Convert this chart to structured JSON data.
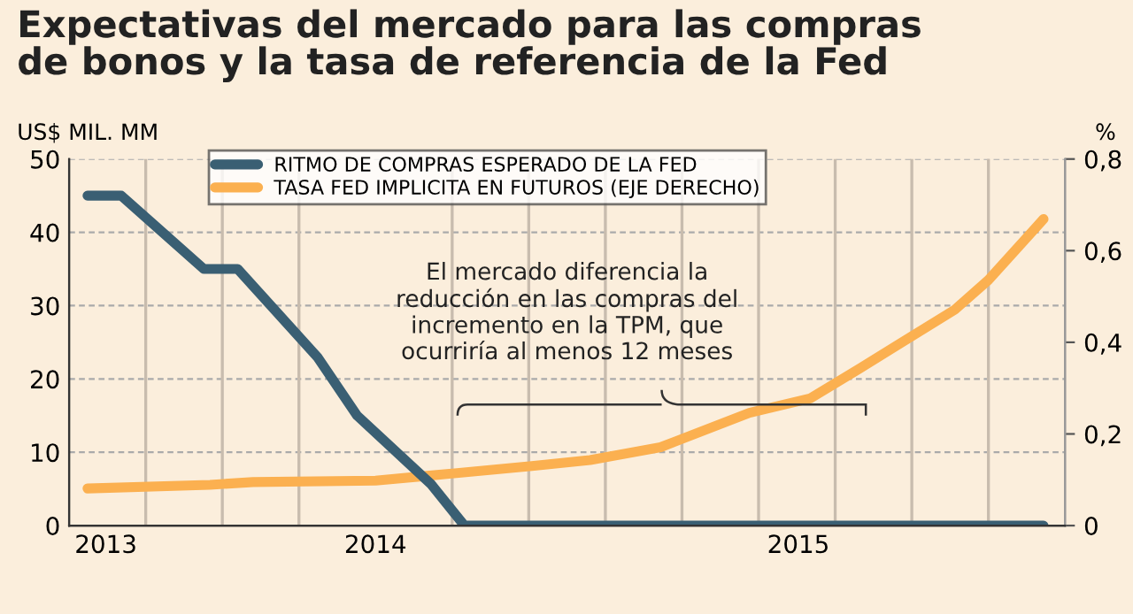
{
  "chart_data": {
    "type": "line",
    "title": "Expectativas del mercado para las compras\nde bonos y la tasa de referencia de la Fed",
    "ylabel": "US$ MIL. MM",
    "y2label": "%",
    "x": [
      2013.06,
      2013.17,
      2013.44,
      2013.55,
      2013.81,
      2013.94,
      2014.18,
      2014.29,
      2016.18
    ],
    "series": [
      {
        "name": "RITMO DE COMPRAS ESPERADO DE LA FED",
        "color": "#3a5f73",
        "values": [
          45,
          45,
          35,
          35,
          23,
          15,
          5.7,
          0,
          0
        ]
      },
      {
        "name": "TASA FED IMPLICITA EN FUTUROS (EJE DERECHO)",
        "color": "#fbb050",
        "axis": "y2",
        "x": [
          2013.06,
          2013.46,
          2013.6,
          2014.0,
          2014.16,
          2014.51,
          2014.7,
          2014.93,
          2015.22,
          2015.42,
          2015.58,
          2015.89,
          2016.0,
          2016.18
        ],
        "values": [
          0.081,
          0.089,
          0.095,
          0.098,
          0.108,
          0.13,
          0.143,
          0.171,
          0.246,
          0.278,
          0.343,
          0.471,
          0.536,
          0.669
        ]
      }
    ],
    "xlim": [
      2013.0,
      2016.25
    ],
    "xticks": [
      {
        "value": 2013.12,
        "label": "2013"
      },
      {
        "value": 2014.0,
        "label": "2014"
      },
      {
        "value": 2015.38,
        "label": "2015"
      },
      {
        "value": 2013.25,
        "label": null
      },
      {
        "value": 2013.5,
        "label": null
      },
      {
        "value": 2013.75,
        "label": null
      },
      {
        "value": 2014.25,
        "label": null
      },
      {
        "value": 2014.5,
        "label": null
      },
      {
        "value": 2014.75,
        "label": null
      },
      {
        "value": 2015.0,
        "label": null
      },
      {
        "value": 2015.25,
        "label": null
      },
      {
        "value": 2015.5,
        "label": null
      },
      {
        "value": 2015.75,
        "label": null
      },
      {
        "value": 2016.0,
        "label": null
      }
    ],
    "ylim": [
      0,
      50
    ],
    "yticks": [
      0,
      10,
      20,
      30,
      40,
      50
    ],
    "y2lim": [
      0,
      0.8
    ],
    "y2ticks": [
      0,
      {
        "value": 0.2,
        "label": "0,2"
      },
      {
        "value": 0.4,
        "label": "0,4"
      },
      {
        "value": 0.6,
        "label": "0,6"
      },
      {
        "value": 0.8,
        "label": "0,8"
      }
    ],
    "annotations": [
      "El mercado diferencia la\nreducción en las compras del\nincremento en la TPM, que\nocurriría al menos 12 meses"
    ],
    "grid": true,
    "legend": "top"
  }
}
